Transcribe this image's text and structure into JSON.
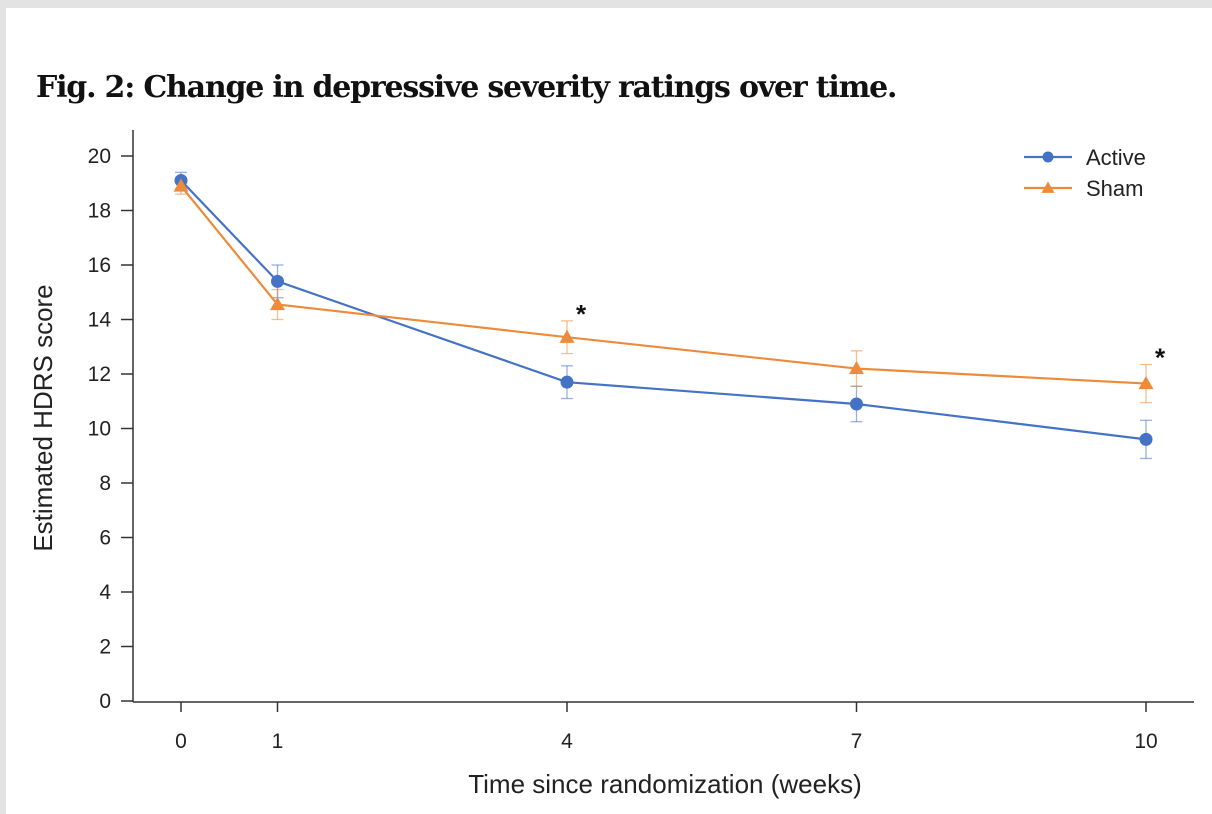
{
  "figure": {
    "title": "Fig. 2: Change in depressive severity ratings over time."
  },
  "chart_data": {
    "type": "line",
    "title": "Fig. 2: Change in depressive severity ratings over time.",
    "xlabel": "Time since randomization (weeks)",
    "ylabel": "Estimated HDRS score",
    "x": [
      0,
      1,
      4,
      7,
      10
    ],
    "xticks": [
      "0",
      "1",
      "4",
      "7",
      "10"
    ],
    "xlim": [
      -0.5,
      10.5
    ],
    "ylim": [
      0,
      20
    ],
    "yticks": [
      "0",
      "2",
      "4",
      "6",
      "8",
      "10",
      "12",
      "14",
      "16",
      "18",
      "20"
    ],
    "grid": false,
    "legend_position": "top-right",
    "series": [
      {
        "name": "Active",
        "color": "#4472c4",
        "marker": "circle",
        "values": [
          19.1,
          15.4,
          11.7,
          10.9,
          9.6
        ],
        "error": [
          0.3,
          0.6,
          0.6,
          0.65,
          0.7
        ]
      },
      {
        "name": "Sham",
        "color": "#ed8b3a",
        "marker": "triangle",
        "values": [
          18.9,
          14.55,
          13.35,
          12.2,
          11.65
        ],
        "error": [
          0.3,
          0.55,
          0.6,
          0.65,
          0.7
        ]
      }
    ],
    "annotations": [
      {
        "x": 4,
        "label": "*"
      },
      {
        "x": 10,
        "label": "*"
      }
    ]
  }
}
